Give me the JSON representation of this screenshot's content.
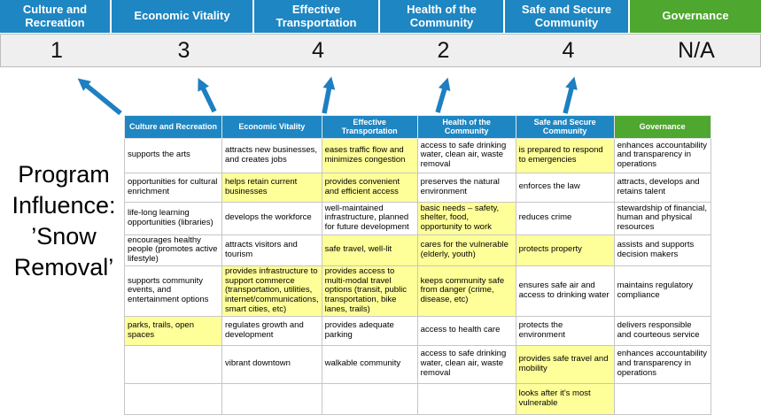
{
  "title": "Program Influence: ’Snow Removal’",
  "colors": {
    "header_blue": "#1e86c2",
    "header_green": "#4ea72e",
    "highlight_yellow": "#ffff99",
    "arrow_blue": "#1e7fc2",
    "score_band_gray": "#efefef"
  },
  "summary": {
    "columns": [
      {
        "label": "Culture and Recreation",
        "score": "1",
        "theme": "blue"
      },
      {
        "label": "Economic Vitality",
        "score": "3",
        "theme": "blue"
      },
      {
        "label": "Effective Transportation",
        "score": "4",
        "theme": "blue"
      },
      {
        "label": "Health of the Community",
        "score": "2",
        "theme": "blue"
      },
      {
        "label": "Safe and Secure Community",
        "score": "4",
        "theme": "blue"
      },
      {
        "label": "Governance",
        "score": "N/A",
        "theme": "green"
      }
    ]
  },
  "matrix": {
    "headers": [
      {
        "label": "Culture and Recreation",
        "theme": "blue"
      },
      {
        "label": "Economic Vitality",
        "theme": "blue"
      },
      {
        "label": "Effective Transportation",
        "theme": "blue"
      },
      {
        "label": "Health of the Community",
        "theme": "blue"
      },
      {
        "label": "Safe and Secure Community",
        "theme": "blue"
      },
      {
        "label": "Governance",
        "theme": "green"
      }
    ],
    "rows": [
      [
        {
          "text": "supports the arts",
          "highlight": false
        },
        {
          "text": "attracts new businesses, and creates jobs",
          "highlight": false
        },
        {
          "text": "eases traffic flow and minimizes congestion",
          "highlight": true
        },
        {
          "text": "access to safe drinking water, clean air, waste removal",
          "highlight": false
        },
        {
          "text": "is prepared to respond to emergencies",
          "highlight": true
        },
        {
          "text": "enhances accountability and transparency in operations",
          "highlight": false
        }
      ],
      [
        {
          "text": "opportunities for cultural enrichment",
          "highlight": false
        },
        {
          "text": "helps retain current businesses",
          "highlight": true
        },
        {
          "text": "provides convenient and efficient access",
          "highlight": true
        },
        {
          "text": "preserves the natural environment",
          "highlight": false
        },
        {
          "text": "enforces the law",
          "highlight": false
        },
        {
          "text": "attracts, develops and retains talent",
          "highlight": false
        }
      ],
      [
        {
          "text": "life-long learning opportunities (libraries)",
          "highlight": false
        },
        {
          "text": "develops the workforce",
          "highlight": false
        },
        {
          "text": "well-maintained infrastructure, planned for future development",
          "highlight": false
        },
        {
          "text": "basic needs – safety, shelter, food, opportunity to work",
          "highlight": true
        },
        {
          "text": "reduces crime",
          "highlight": false
        },
        {
          "text": "stewardship of financial, human and physical resources",
          "highlight": false
        }
      ],
      [
        {
          "text": "encourages healthy people (promotes active lifestyle)",
          "highlight": false
        },
        {
          "text": "attracts visitors and tourism",
          "highlight": false
        },
        {
          "text": "safe travel, well-lit",
          "highlight": true
        },
        {
          "text": "cares for the vulnerable (elderly, youth)",
          "highlight": true
        },
        {
          "text": "protects property",
          "highlight": true
        },
        {
          "text": "assists and supports decision makers",
          "highlight": false
        }
      ],
      [
        {
          "text": "supports community events, and entertainment options",
          "highlight": false
        },
        {
          "text": "provides infrastructure to support commerce (transportation, utilities, internet/communications, smart cities, etc)",
          "highlight": true
        },
        {
          "text": "provides access to multi-modal travel options (transit, public transportation, bike lanes, trails)",
          "highlight": true
        },
        {
          "text": "keeps community safe from danger (crime, disease, etc)",
          "highlight": true
        },
        {
          "text": "ensures safe air and access to drinking water",
          "highlight": false
        },
        {
          "text": "maintains regulatory compliance",
          "highlight": false
        }
      ],
      [
        {
          "text": "parks, trails, open spaces",
          "highlight": true
        },
        {
          "text": "regulates growth and development",
          "highlight": false
        },
        {
          "text": "provides adequate parking",
          "highlight": false
        },
        {
          "text": "access to health care",
          "highlight": false
        },
        {
          "text": "protects the environment",
          "highlight": false
        },
        {
          "text": "delivers responsible and courteous service",
          "highlight": false
        }
      ],
      [
        {
          "text": "",
          "highlight": false
        },
        {
          "text": "vibrant downtown",
          "highlight": false
        },
        {
          "text": "walkable community",
          "highlight": false
        },
        {
          "text": "access to safe drinking water, clean air, waste removal",
          "highlight": false
        },
        {
          "text": "provides safe travel and mobility",
          "highlight": true
        },
        {
          "text": "enhances accountability and transparency in operations",
          "highlight": false
        }
      ],
      [
        {
          "text": "",
          "highlight": false
        },
        {
          "text": "",
          "highlight": false
        },
        {
          "text": "",
          "highlight": false
        },
        {
          "text": "",
          "highlight": false
        },
        {
          "text": "looks after it's most vulnerable",
          "highlight": true
        },
        {
          "text": "",
          "highlight": false
        }
      ]
    ]
  }
}
